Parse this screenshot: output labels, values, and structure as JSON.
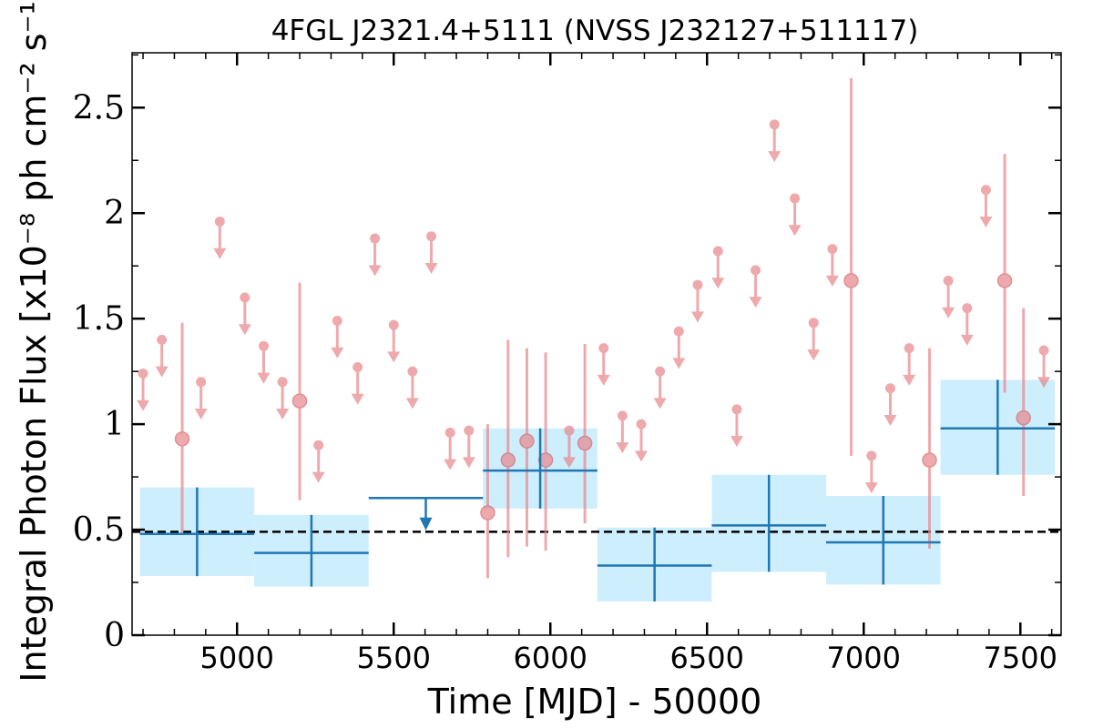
{
  "chart_data": {
    "type": "scatter",
    "title": "4FGL J2321.4+5111 (NVSS J232127+511117)",
    "xlabel": "Time [MJD] - 50000",
    "ylabel": "Integral Photon Flux [x10⁻⁸ ph cm⁻² s⁻¹]",
    "xlim": [
      4665,
      7630
    ],
    "ylim": [
      0,
      2.76
    ],
    "xticks": [
      5000,
      5500,
      6000,
      6500,
      7000,
      7500
    ],
    "yticks": [
      0,
      0.5,
      1,
      1.5,
      2,
      2.5
    ],
    "ytick_labels": [
      "0",
      "0.5",
      "1",
      "1.5",
      "2",
      "2.5"
    ],
    "grid": false,
    "reference_line": {
      "y": 0.49,
      "style": "dashed",
      "color": "#000000"
    },
    "colors": {
      "short_bins": "#e8868a",
      "long_bins": "#1f77b4",
      "long_bins_band": "#cdeefd"
    },
    "series": [
      {
        "kind": "short_bins_upper_limits",
        "points": [
          {
            "x": 4700,
            "y": 1.24
          },
          {
            "x": 4760,
            "y": 1.4
          },
          {
            "x": 4885,
            "y": 1.2
          },
          {
            "x": 4945,
            "y": 1.96
          },
          {
            "x": 5025,
            "y": 1.6
          },
          {
            "x": 5085,
            "y": 1.37
          },
          {
            "x": 5145,
            "y": 1.2
          },
          {
            "x": 5260,
            "y": 0.9
          },
          {
            "x": 5320,
            "y": 1.49
          },
          {
            "x": 5385,
            "y": 1.27
          },
          {
            "x": 5440,
            "y": 1.88
          },
          {
            "x": 5500,
            "y": 1.47
          },
          {
            "x": 5560,
            "y": 1.25
          },
          {
            "x": 5620,
            "y": 1.89
          },
          {
            "x": 5680,
            "y": 0.96
          },
          {
            "x": 5740,
            "y": 0.97
          },
          {
            "x": 6060,
            "y": 0.97
          },
          {
            "x": 6170,
            "y": 1.36
          },
          {
            "x": 6230,
            "y": 1.04
          },
          {
            "x": 6290,
            "y": 1.0
          },
          {
            "x": 6350,
            "y": 1.25
          },
          {
            "x": 6410,
            "y": 1.44
          },
          {
            "x": 6470,
            "y": 1.66
          },
          {
            "x": 6535,
            "y": 1.82
          },
          {
            "x": 6595,
            "y": 1.07
          },
          {
            "x": 6655,
            "y": 1.73
          },
          {
            "x": 6715,
            "y": 2.42
          },
          {
            "x": 6780,
            "y": 2.07
          },
          {
            "x": 6840,
            "y": 1.48
          },
          {
            "x": 6900,
            "y": 1.83
          },
          {
            "x": 7025,
            "y": 0.85
          },
          {
            "x": 7085,
            "y": 1.17
          },
          {
            "x": 7145,
            "y": 1.36
          },
          {
            "x": 7270,
            "y": 1.68
          },
          {
            "x": 7330,
            "y": 1.55
          },
          {
            "x": 7390,
            "y": 2.11
          },
          {
            "x": 7575,
            "y": 1.35
          }
        ]
      },
      {
        "kind": "short_bins_detections",
        "points": [
          {
            "x": 4825,
            "y": 0.93,
            "ylo": 0.48,
            "yhi": 1.48
          },
          {
            "x": 5200,
            "y": 1.11,
            "ylo": 0.64,
            "yhi": 1.67
          },
          {
            "x": 5800,
            "y": 0.58,
            "ylo": 0.27,
            "yhi": 1.0
          },
          {
            "x": 5865,
            "y": 0.83,
            "ylo": 0.37,
            "yhi": 1.4
          },
          {
            "x": 5925,
            "y": 0.92,
            "ylo": 0.42,
            "yhi": 1.36
          },
          {
            "x": 5985,
            "y": 0.83,
            "ylo": 0.4,
            "yhi": 1.34
          },
          {
            "x": 6110,
            "y": 0.91,
            "ylo": 0.53,
            "yhi": 1.38
          },
          {
            "x": 6960,
            "y": 1.68,
            "ylo": 0.85,
            "yhi": 2.64
          },
          {
            "x": 7210,
            "y": 0.83,
            "ylo": 0.41,
            "yhi": 1.36
          },
          {
            "x": 7450,
            "y": 1.68,
            "ylo": 1.15,
            "yhi": 2.28
          },
          {
            "x": 7510,
            "y": 1.03,
            "ylo": 0.66,
            "yhi": 1.55
          }
        ]
      },
      {
        "kind": "long_bins",
        "bins": [
          {
            "x0": 4690,
            "x1": 5055,
            "y": 0.48,
            "ylo": 0.28,
            "yhi": 0.7
          },
          {
            "x0": 5055,
            "x1": 5420,
            "y": 0.39,
            "ylo": 0.23,
            "yhi": 0.57
          },
          {
            "x0": 5420,
            "x1": 5785,
            "y": 0.65,
            "upper_limit": true
          },
          {
            "x0": 5785,
            "x1": 6150,
            "y": 0.78,
            "ylo": 0.6,
            "yhi": 0.98
          },
          {
            "x0": 6150,
            "x1": 6515,
            "y": 0.33,
            "ylo": 0.16,
            "yhi": 0.51
          },
          {
            "x0": 6515,
            "x1": 6880,
            "y": 0.52,
            "ylo": 0.3,
            "yhi": 0.76
          },
          {
            "x0": 6880,
            "x1": 7245,
            "y": 0.44,
            "ylo": 0.24,
            "yhi": 0.66
          },
          {
            "x0": 7245,
            "x1": 7610,
            "y": 0.98,
            "ylo": 0.76,
            "yhi": 1.21
          }
        ]
      }
    ]
  }
}
